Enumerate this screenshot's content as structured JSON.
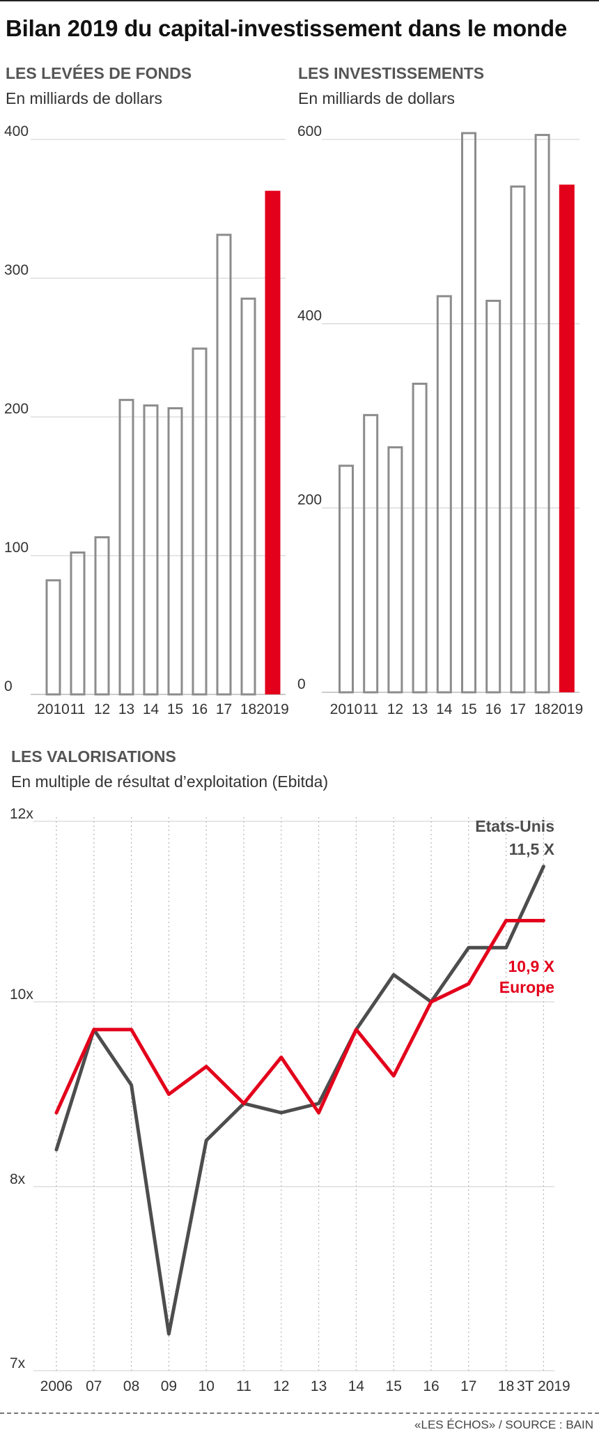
{
  "title": "Bilan 2019 du capital-investissement dans le monde",
  "source": "«LES ÉCHOS» / SOURCE : BAIN",
  "colors": {
    "highlight": "#e3001b",
    "outline": "#8c8c8c",
    "us_line": "#4d4d4d",
    "grid": "#cccccc"
  },
  "chart_data": [
    {
      "type": "bar",
      "title": "LES LEVÉES DE FONDS",
      "subtitle": "En milliards de dollars",
      "categories": [
        "2010",
        "11",
        "12",
        "13",
        "14",
        "15",
        "16",
        "17",
        "18",
        "2019"
      ],
      "values": [
        83,
        103,
        114,
        213,
        209,
        207,
        250,
        332,
        286,
        363
      ],
      "highlight_category": "2019",
      "ylim": [
        0,
        400
      ],
      "yticks": [
        "0",
        "100",
        "200",
        "300",
        "400"
      ],
      "grid": true
    },
    {
      "type": "bar",
      "title": "LES INVESTISSEMENTS",
      "subtitle": "En milliards de dollars",
      "categories": [
        "2010",
        "11",
        "12",
        "13",
        "14",
        "15",
        "16",
        "17",
        "18",
        "2019"
      ],
      "values": [
        247,
        302,
        267,
        336,
        431,
        608,
        426,
        550,
        606,
        551
      ],
      "highlight_category": "2019",
      "ylim": [
        0,
        600
      ],
      "yticks": [
        "0",
        "200",
        "400",
        "600"
      ],
      "grid": true
    },
    {
      "type": "line",
      "title": "LES VALORISATIONS",
      "subtitle": "En multiple de résultat d’exploitation (Ebitda)",
      "categories": [
        "2006",
        "07",
        "08",
        "09",
        "10",
        "11",
        "12",
        "13",
        "14",
        "15",
        "16",
        "17",
        "18",
        "3T 2019"
      ],
      "ylim": [
        7,
        12
      ],
      "yticks": [
        "7x",
        "8x",
        "10x",
        "12x"
      ],
      "series": [
        {
          "name": "Etats-Unis",
          "values": [
            8.4,
            9.7,
            9.1,
            7.2,
            8.5,
            8.9,
            8.8,
            8.9,
            9.7,
            10.3,
            10.0,
            10.6,
            10.6,
            11.5
          ],
          "end_label": "11,5 X",
          "color": "#4d4d4d"
        },
        {
          "name": "Europe",
          "values": [
            8.8,
            9.7,
            9.7,
            9.0,
            9.3,
            8.9,
            9.4,
            8.8,
            9.7,
            9.2,
            10.0,
            10.2,
            10.9,
            10.9
          ],
          "end_label": "10,9 X",
          "color": "#e3001b"
        }
      ],
      "grid": true
    }
  ]
}
